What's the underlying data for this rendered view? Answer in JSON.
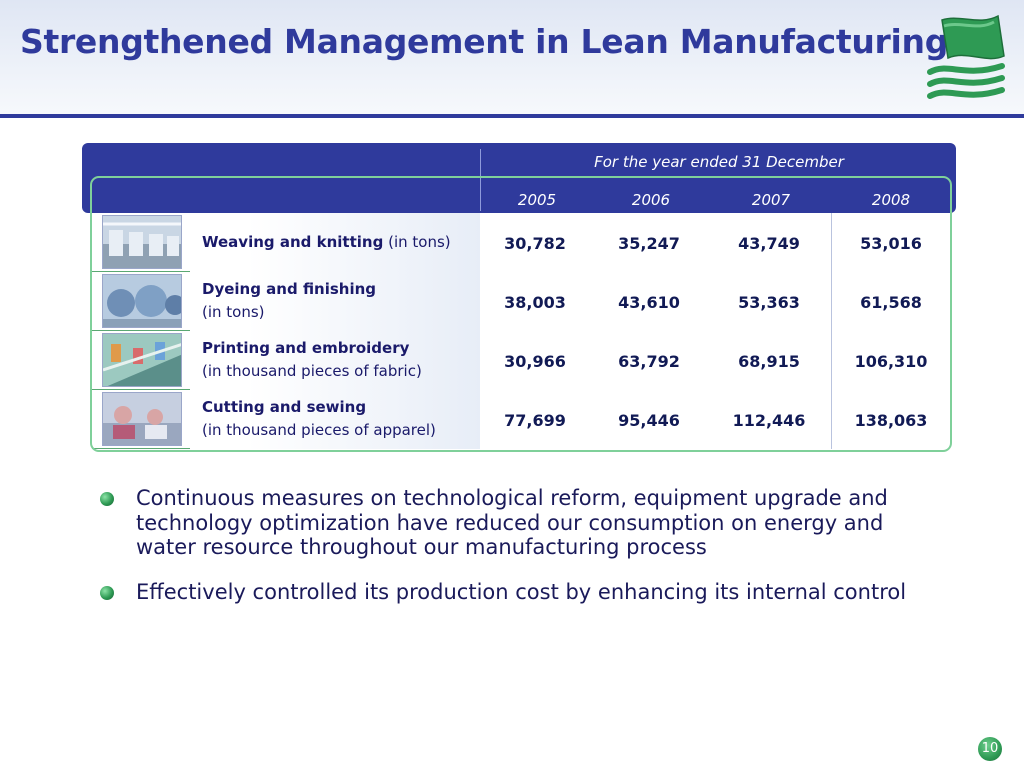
{
  "title": "Strengthened Management in Lean Manufacturing",
  "table": {
    "period_header": "For the year ended  31 December",
    "years": [
      "2005",
      "2006",
      "2007",
      "2008"
    ],
    "rows": [
      {
        "label_bold": "Weaving and knitting",
        "label_unit": "(in tons)",
        "values": [
          "30,782",
          "35,247",
          "43,749",
          "53,016"
        ]
      },
      {
        "label_bold": "Dyeing and finishing",
        "label_unit": "(in tons)",
        "values": [
          "38,003",
          "43,610",
          "53,363",
          "61,568"
        ]
      },
      {
        "label_bold": "Printing and embroidery",
        "label_unit": "(in thousand pieces of fabric)",
        "values": [
          "30,966",
          "63,792",
          "68,915",
          "106,310"
        ]
      },
      {
        "label_bold": "Cutting and sewing",
        "label_unit": "(in thousand pieces of apparel)",
        "values": [
          "77,699",
          "95,446",
          "112,446",
          "138,063"
        ]
      }
    ]
  },
  "bullets": [
    "Continuous measures on technological reform, equipment upgrade and technology optimization have reduced our consumption on energy and water resource throughout our manufacturing process",
    "Effectively controlled its production cost by enhancing its internal control"
  ],
  "page_number": "10",
  "colors": {
    "brand": "#2f3a9c",
    "accent_green": "#2e9a54",
    "frame_green": "#7fd09a"
  },
  "icons": [
    "flag-logo-icon",
    "weaving-photo",
    "dyeing-photo",
    "printing-photo",
    "cutting-photo",
    "bullet-dot-icon"
  ]
}
